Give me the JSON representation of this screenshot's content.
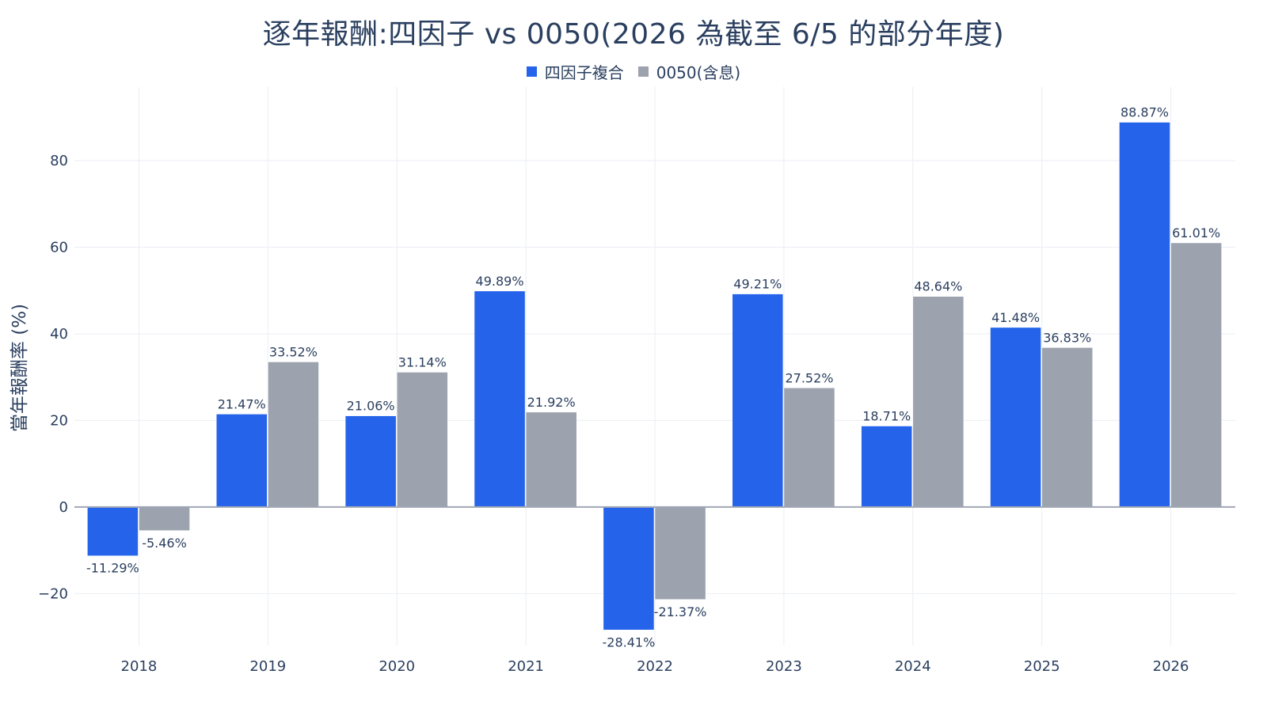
{
  "chart_data": {
    "type": "bar",
    "title": "逐年報酬:四因子 vs 0050(2026 為截至 6/5 的部分年度)",
    "xlabel": "",
    "ylabel": "當年報酬率 (%)",
    "categories": [
      "2018",
      "2019",
      "2020",
      "2021",
      "2022",
      "2023",
      "2024",
      "2025",
      "2026"
    ],
    "series": [
      {
        "name": "四因子複合",
        "color": "#2563eb",
        "values": [
          -11.29,
          21.47,
          21.06,
          49.89,
          -28.41,
          49.21,
          18.71,
          41.48,
          88.87
        ],
        "labels": [
          "-11.29%",
          "21.47%",
          "21.06%",
          "49.89%",
          "-28.41%",
          "49.21%",
          "18.71%",
          "41.48%",
          "88.87%"
        ]
      },
      {
        "name": "0050(含息)",
        "color": "#9ca3af",
        "values": [
          -5.46,
          33.52,
          31.14,
          21.92,
          -21.37,
          27.52,
          48.64,
          36.83,
          61.01
        ],
        "labels": [
          "-5.46%",
          "33.52%",
          "31.14%",
          "21.92%",
          "-21.37%",
          "27.52%",
          "48.64%",
          "36.83%",
          "61.01%"
        ]
      }
    ],
    "ylim": [
      -32,
      97
    ],
    "yticks": [
      -20,
      0,
      20,
      40,
      60,
      80
    ],
    "ytick_labels": [
      "−20",
      "0",
      "20",
      "40",
      "60",
      "80"
    ],
    "grid": true,
    "legend": "top-center"
  }
}
